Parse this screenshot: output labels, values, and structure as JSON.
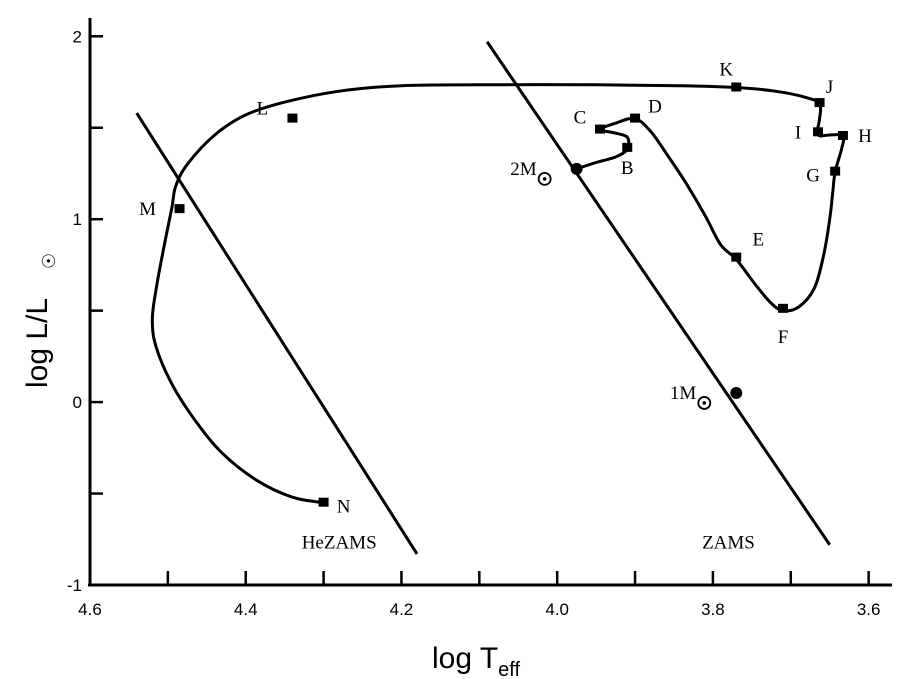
{
  "chart_data": {
    "type": "line",
    "title": "",
    "xlabel": "log T",
    "xlabel_sub": "eff",
    "ylabel": "log L/L",
    "ylabel_sun_symbol": "☉",
    "xlim": [
      4.6,
      3.57
    ],
    "x_reversed": true,
    "ylim": [
      -1.0,
      2.1
    ],
    "x_ticks": [
      {
        "value": 4.6,
        "label": "4.6"
      },
      {
        "value": 4.5,
        "label": ""
      },
      {
        "value": 4.4,
        "label": "4.4"
      },
      {
        "value": 4.3,
        "label": ""
      },
      {
        "value": 4.2,
        "label": "4.2"
      },
      {
        "value": 4.1,
        "label": ""
      },
      {
        "value": 4.0,
        "label": "4.0"
      },
      {
        "value": 3.9,
        "label": ""
      },
      {
        "value": 3.8,
        "label": "3.8"
      },
      {
        "value": 3.7,
        "label": ""
      },
      {
        "value": 3.6,
        "label": "3.6"
      }
    ],
    "y_ticks": [
      {
        "value": -1,
        "label": "-1"
      },
      {
        "value": -0.5,
        "label": ""
      },
      {
        "value": 0,
        "label": "0"
      },
      {
        "value": 0.5,
        "label": ""
      },
      {
        "value": 1,
        "label": "1"
      },
      {
        "value": 1.5,
        "label": ""
      },
      {
        "value": 2,
        "label": "2"
      }
    ],
    "grid": false,
    "series": [
      {
        "points": [
          [
            3.975,
            1.275
          ],
          [
            3.95,
            1.31
          ],
          [
            3.925,
            1.34
          ],
          [
            3.91,
            1.38
          ],
          [
            3.908,
            1.42
          ],
          [
            3.912,
            1.455
          ],
          [
            3.93,
            1.475
          ],
          [
            3.945,
            1.49
          ],
          [
            3.925,
            1.525
          ],
          [
            3.9,
            1.55
          ],
          [
            3.88,
            1.48
          ],
          [
            3.86,
            1.36
          ],
          [
            3.835,
            1.2
          ],
          [
            3.81,
            1.02
          ],
          [
            3.79,
            0.86
          ],
          [
            3.77,
            0.78
          ],
          [
            3.745,
            0.64
          ],
          [
            3.725,
            0.54
          ],
          [
            3.71,
            0.5
          ],
          [
            3.69,
            0.52
          ],
          [
            3.67,
            0.62
          ],
          [
            3.658,
            0.8
          ],
          [
            3.65,
            1.0
          ],
          [
            3.646,
            1.15
          ],
          [
            3.643,
            1.26
          ],
          [
            3.635,
            1.38
          ],
          [
            3.633,
            1.455
          ],
          [
            3.652,
            1.46
          ],
          [
            3.662,
            1.455
          ],
          [
            3.666,
            1.475
          ],
          [
            3.663,
            1.55
          ],
          [
            3.663,
            1.63
          ],
          [
            3.68,
            1.665
          ],
          [
            3.72,
            1.7
          ],
          [
            3.77,
            1.72
          ],
          [
            3.84,
            1.73
          ],
          [
            3.95,
            1.735
          ],
          [
            4.1,
            1.735
          ],
          [
            4.2,
            1.73
          ],
          [
            4.28,
            1.7
          ],
          [
            4.35,
            1.64
          ],
          [
            4.4,
            1.57
          ],
          [
            4.44,
            1.46
          ],
          [
            4.475,
            1.3
          ],
          [
            4.49,
            1.18
          ],
          [
            4.495,
            1.06
          ],
          [
            4.505,
            0.85
          ],
          [
            4.515,
            0.62
          ],
          [
            4.52,
            0.45
          ],
          [
            4.515,
            0.3
          ],
          [
            4.495,
            0.1
          ],
          [
            4.465,
            -0.1
          ],
          [
            4.43,
            -0.28
          ],
          [
            4.385,
            -0.43
          ],
          [
            4.34,
            -0.52
          ],
          [
            4.3,
            -0.55
          ]
        ]
      }
    ],
    "reference_lines": [
      {
        "name": "HeZAMS",
        "from": [
          4.54,
          1.58
        ],
        "to": [
          4.18,
          -0.83
        ]
      },
      {
        "name": "ZAMS",
        "from": [
          4.09,
          1.97
        ],
        "to": [
          3.65,
          -0.78
        ]
      }
    ],
    "square_markers": [
      {
        "label": "B",
        "x": 3.91,
        "y": 1.39
      },
      {
        "label": "C",
        "x": 3.945,
        "y": 1.49
      },
      {
        "label": "D",
        "x": 3.9,
        "y": 1.55
      },
      {
        "label": "E",
        "x": 3.77,
        "y": 0.79
      },
      {
        "label": "F",
        "x": 3.71,
        "y": 0.51
      },
      {
        "label": "G",
        "x": 3.643,
        "y": 1.26
      },
      {
        "label": "H",
        "x": 3.633,
        "y": 1.455
      },
      {
        "label": "I",
        "x": 3.665,
        "y": 1.475
      },
      {
        "label": "J",
        "x": 3.663,
        "y": 1.635
      },
      {
        "label": "K",
        "x": 3.77,
        "y": 1.72
      },
      {
        "label": "L",
        "x": 4.34,
        "y": 1.55
      },
      {
        "label": "M",
        "x": 4.485,
        "y": 1.055
      },
      {
        "label": "N",
        "x": 4.3,
        "y": -0.55
      }
    ],
    "circle_markers": [
      {
        "label": "2M",
        "x": 3.975,
        "y": 1.275
      },
      {
        "label": "1M",
        "x": 3.77,
        "y": 0.05
      }
    ],
    "annotations": [
      "HeZAMS",
      "ZAMS"
    ]
  }
}
